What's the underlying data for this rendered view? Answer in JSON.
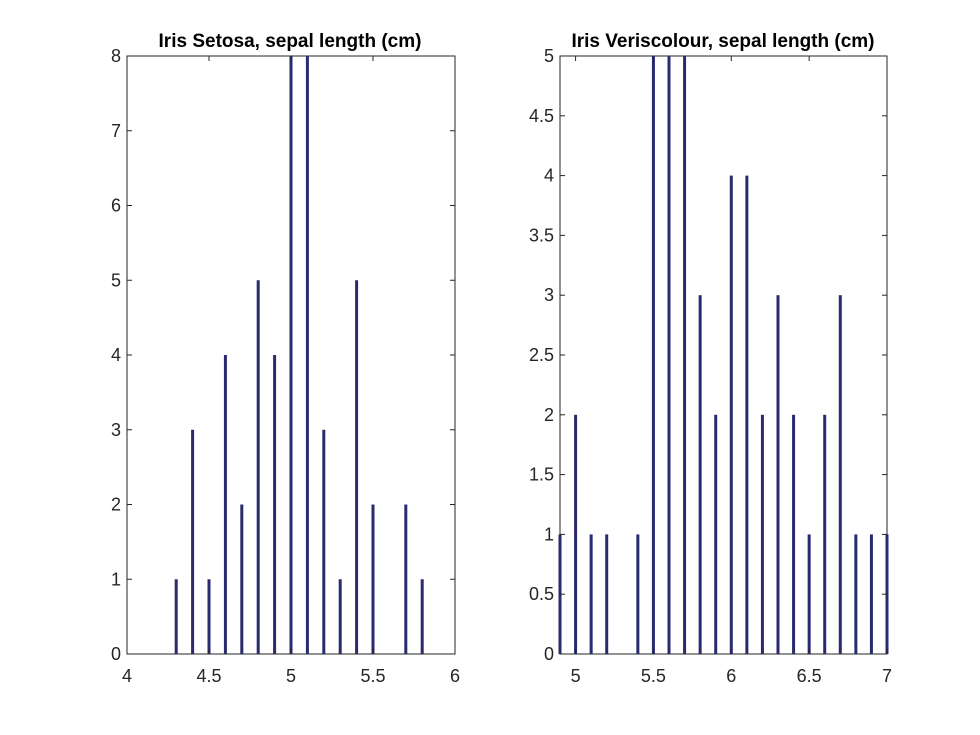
{
  "chart_data": [
    {
      "type": "bar",
      "title": "Iris Setosa, sepal length (cm)",
      "xlabel": "",
      "ylabel": "",
      "xlim": [
        4,
        6
      ],
      "ylim": [
        0,
        8
      ],
      "x_ticks": [
        4,
        4.5,
        5,
        5.5,
        6
      ],
      "x_tick_labels": [
        "4",
        "4.5",
        "5",
        "5.5",
        "6"
      ],
      "y_ticks": [
        0,
        1,
        2,
        3,
        4,
        5,
        6,
        7,
        8
      ],
      "y_tick_labels": [
        "0",
        "1",
        "2",
        "3",
        "4",
        "5",
        "6",
        "7",
        "8"
      ],
      "x": [
        4.3,
        4.4,
        4.5,
        4.6,
        4.7,
        4.8,
        4.9,
        5.0,
        5.1,
        5.2,
        5.3,
        5.4,
        5.5,
        5.7,
        5.8
      ],
      "values": [
        1,
        3,
        1,
        4,
        2,
        5,
        4,
        8,
        8,
        3,
        1,
        5,
        2,
        2,
        1
      ],
      "bar_color": "#2a2a6e",
      "grid": false
    },
    {
      "type": "bar",
      "title": "Iris Veriscolour, sepal length (cm)",
      "xlabel": "",
      "ylabel": "",
      "xlim": [
        4.9,
        7.0
      ],
      "ylim": [
        0,
        5
      ],
      "x_ticks": [
        5,
        5.5,
        6,
        6.5,
        7
      ],
      "x_tick_labels": [
        "5",
        "5.5",
        "6",
        "6.5",
        "7"
      ],
      "y_ticks": [
        0,
        0.5,
        1,
        1.5,
        2,
        2.5,
        3,
        3.5,
        4,
        4.5,
        5
      ],
      "y_tick_labels": [
        "0",
        "0.5",
        "1",
        "1.5",
        "2",
        "2.5",
        "3",
        "3.5",
        "4",
        "4.5",
        "5"
      ],
      "x": [
        4.9,
        5.0,
        5.1,
        5.2,
        5.4,
        5.5,
        5.6,
        5.7,
        5.8,
        5.9,
        6.0,
        6.1,
        6.2,
        6.3,
        6.4,
        6.5,
        6.6,
        6.7,
        6.8,
        6.9,
        7.0
      ],
      "values": [
        1,
        2,
        1,
        1,
        1,
        5,
        5,
        5,
        3,
        2,
        4,
        4,
        2,
        3,
        2,
        1,
        2,
        3,
        1,
        1,
        1
      ],
      "bar_color": "#2a2a6e",
      "grid": false
    }
  ]
}
